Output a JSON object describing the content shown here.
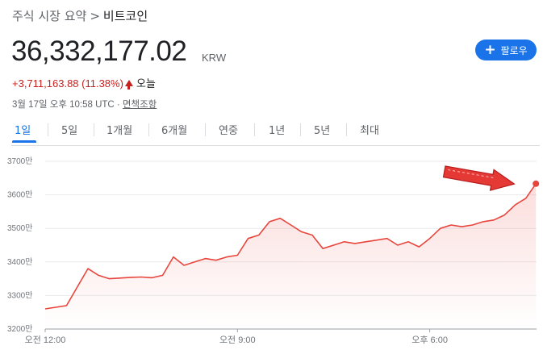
{
  "breadcrumb": {
    "parent": "주식 시장 요약",
    "separator": ">",
    "current": "비트코인"
  },
  "quote": {
    "price": "36,332,177.02",
    "currency": "KRW",
    "change": "+3,711,163.88 (11.38%)",
    "change_period": "오늘",
    "timestamp": "3월 17일 오후 10:58 UTC · ",
    "disclaimer": "면책조항"
  },
  "follow_button": {
    "label": "팔로우",
    "icon": "plus-icon"
  },
  "tabs": [
    "1일",
    "5일",
    "1개월",
    "6개월",
    "연중",
    "1년",
    "5년",
    "최대"
  ],
  "active_tab": "1일",
  "colors": {
    "line": "#e8453c",
    "accent": "#1a73e8",
    "annotation": "#e53935"
  },
  "chart_data": {
    "type": "line",
    "y_unit_labels": [
      "3200만",
      "3300만",
      "3400만",
      "3500만",
      "3600만",
      "3700만"
    ],
    "y_ticks": [
      32000000,
      33000000,
      34000000,
      35000000,
      36000000,
      37000000
    ],
    "ylim": [
      32000000,
      37000000
    ],
    "x_tick_labels": [
      "오전 12:00",
      "오전 9:00",
      "오후 6:00"
    ],
    "x_tick_hours": [
      0,
      9,
      18
    ],
    "xlim": [
      0,
      23
    ],
    "grid": true,
    "annotation": "red-arrow-pointing-right",
    "x": [
      0,
      0.5,
      1,
      1.5,
      2,
      2.5,
      3,
      3.5,
      4,
      4.5,
      5,
      5.5,
      6,
      6.5,
      7,
      7.5,
      8,
      8.5,
      9,
      9.5,
      10,
      10.5,
      11,
      11.5,
      12,
      12.5,
      13,
      13.5,
      14,
      14.5,
      15,
      15.5,
      16,
      16.5,
      17,
      17.5,
      18,
      18.5,
      19,
      19.5,
      20,
      20.5,
      21,
      21.5,
      22,
      22.5,
      22.97
    ],
    "values": [
      32600000,
      32650000,
      32700000,
      33250000,
      33800000,
      33600000,
      33500000,
      33520000,
      33540000,
      33550000,
      33530000,
      33600000,
      34150000,
      33900000,
      34000000,
      34100000,
      34050000,
      34150000,
      34200000,
      34700000,
      34800000,
      35200000,
      35300000,
      35100000,
      34900000,
      34800000,
      34400000,
      34500000,
      34600000,
      34550000,
      34600000,
      34650000,
      34700000,
      34500000,
      34600000,
      34450000,
      34700000,
      35000000,
      35100000,
      35050000,
      35100000,
      35200000,
      35250000,
      35400000,
      35700000,
      35900000,
      36332177
    ]
  }
}
